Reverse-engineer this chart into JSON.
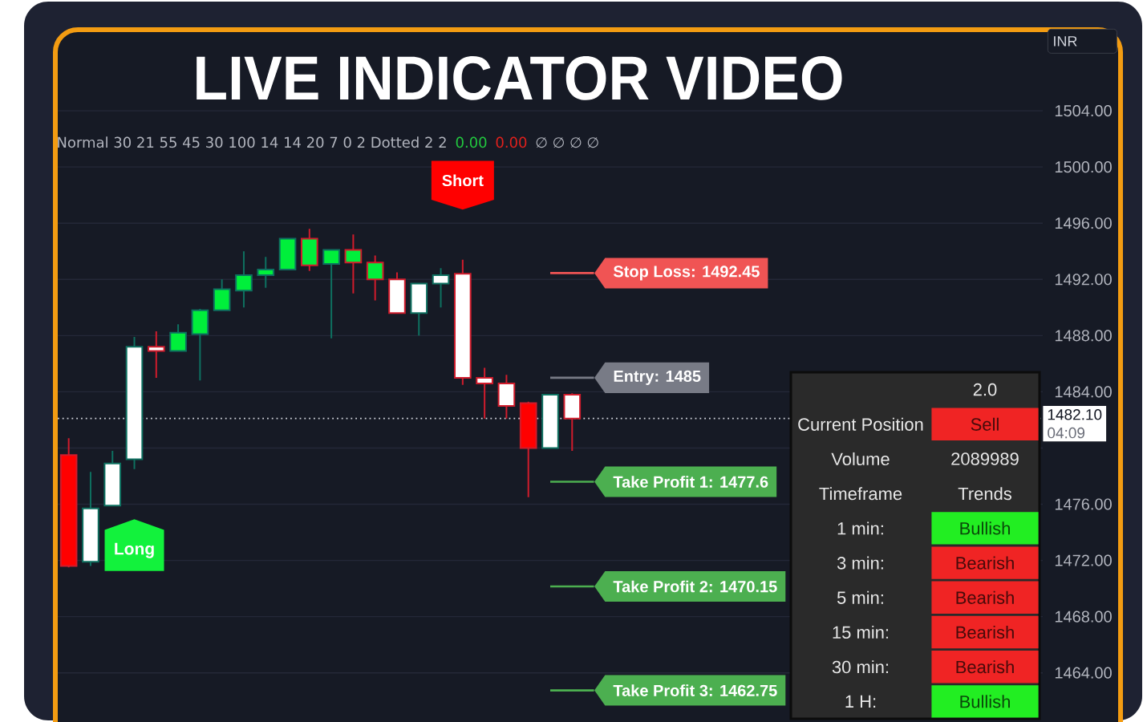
{
  "chart_data": [
    {
      "type": "candlestick",
      "title": "LIVE INDICATOR VIDEO",
      "categories": [
        null,
        null,
        null,
        null,
        null,
        null,
        null,
        null,
        null,
        null,
        null,
        null,
        null,
        null,
        null,
        null,
        null,
        null,
        null,
        null,
        null,
        null,
        null,
        null,
        null,
        null,
        null,
        null,
        null,
        null,
        null,
        null,
        null,
        null,
        null,
        null,
        null,
        null,
        null,
        null,
        null,
        null,
        null,
        null,
        null
      ],
      "ohlc": [
        [
          1479.5,
          1480.7,
          1471.5,
          1471.6
        ],
        [
          1471.9,
          1478.3,
          1471.6,
          1475.7
        ],
        [
          1475.9,
          1479.8,
          1475.9,
          1478.9
        ],
        [
          1479.2,
          1487.9,
          1478.5,
          1487.2
        ],
        [
          1487.2,
          1488.3,
          1485.0,
          1486.9
        ],
        [
          1486.9,
          1488.8,
          1486.9,
          1488.2
        ],
        [
          1488.1,
          1489.9,
          1484.8,
          1489.8
        ],
        [
          1489.8,
          1492.0,
          1489.8,
          1491.3
        ],
        [
          1491.2,
          1494.0,
          1490.0,
          1492.3
        ],
        [
          1492.3,
          1493.6,
          1491.4,
          1492.7
        ],
        [
          1492.7,
          1494.9,
          1492.7,
          1494.9
        ],
        [
          1494.9,
          1495.6,
          1492.6,
          1493.0
        ],
        [
          1493.1,
          1494.1,
          1487.8,
          1494.1
        ],
        [
          1494.1,
          1495.2,
          1491.0,
          1493.2
        ],
        [
          1493.2,
          1493.7,
          1490.5,
          1492.0
        ],
        [
          1492.0,
          1492.5,
          1489.6,
          1489.6
        ],
        [
          1489.6,
          1491.7,
          1488.0,
          1491.7
        ],
        [
          1491.7,
          1492.8,
          1490.0,
          1492.3
        ],
        [
          1492.4,
          1493.4,
          1484.5,
          1485.0
        ],
        [
          1485.0,
          1485.7,
          1482.1,
          1484.6
        ],
        [
          1484.6,
          1485.2,
          1482.1,
          1483.0
        ],
        [
          1483.2,
          1483.3,
          1476.5,
          1480.0
        ],
        [
          1480.0,
          1483.8,
          1480.0,
          1483.8
        ],
        [
          1483.8,
          1483.9,
          1479.8,
          1482.1
        ],
        null,
        null,
        null,
        null,
        null,
        null,
        null,
        null,
        null,
        null,
        null,
        null,
        null,
        null,
        null,
        null,
        null,
        null,
        null,
        null,
        null
      ],
      "colors": [
        "#ff0000",
        "#ffffff",
        "#ffffff",
        "#ffffff",
        "#ffffff",
        "#00ef3b",
        "#00ef3b",
        "#00ef3b",
        "#00ef3b",
        "#00ef3b",
        "#00ef3b",
        "#00ef3b",
        "#00ef3b",
        "#00ef3b",
        "#00ef3b",
        "#ffffff",
        "#ffffff",
        "#ffffff",
        "#ffffff",
        "#ffffff",
        "#ffffff",
        "#ff0000",
        "#ffffff",
        "#ffffff",
        null,
        null,
        null,
        null,
        null,
        null,
        null,
        null,
        null,
        null,
        null,
        null,
        null,
        null,
        null,
        null,
        null,
        null,
        null,
        null,
        null
      ],
      "ylim": [
        1460.5,
        1509.6
      ],
      "yticks": [
        {
          "value": 1464,
          "label": "1464.00"
        },
        {
          "value": 1468,
          "label": "1468.00"
        },
        {
          "value": 1472,
          "label": "1472.00"
        },
        {
          "value": 1476,
          "label": "1476.00"
        },
        {
          "value": 1480,
          "label": null
        },
        {
          "value": 1484,
          "label": "1484.00"
        },
        {
          "value": 1488,
          "label": "1488.00"
        },
        {
          "value": 1492,
          "label": "1492.00"
        },
        {
          "value": 1496,
          "label": "1496.00"
        },
        {
          "value": 1500,
          "label": "1500.00"
        },
        {
          "value": 1504,
          "label": "1504.00"
        }
      ],
      "tick_labels": "y",
      "grid": "y",
      "ref_lines": [
        {
          "axis": "y",
          "value": 1492.45,
          "label": "Stop Loss: 1492.45",
          "color": "#f05454",
          "line_style": "solid"
        },
        {
          "axis": "y",
          "value": 1485,
          "label": "Entry: 1485",
          "color": "#787b86",
          "line_style": "solid"
        },
        {
          "axis": "y",
          "value": 1477.6,
          "label": "Take Profit 1: 1477.6",
          "color": "#4caf50",
          "line_style": "solid"
        },
        {
          "axis": "y",
          "value": 1470.15,
          "label": "Take Profit 2: 1470.15",
          "color": "#4caf50",
          "line_style": "solid"
        },
        {
          "axis": "y",
          "value": 1462.75,
          "label": "Take Profit 3: 1462.75",
          "color": "#4caf50",
          "line_style": "solid"
        },
        {
          "axis": "y",
          "value": 1482.1,
          "label": "1482.10",
          "color": "#d1d4dc",
          "line_style": "dotted"
        }
      ],
      "annotations": [
        "Normal 30 21 55 45 30 100 14 14 20 7 0 2 Dotted 2 2",
        "0.00",
        "0.00",
        "∅ ∅ ∅ ∅",
        "INR",
        "04:09",
        "Short",
        "Long"
      ]
    },
    {
      "type": "other",
      "title": "2.0",
      "annotations": [
        "Current Position",
        "Volume",
        "Timeframe",
        "Trends",
        "1 min:",
        "3 min:",
        "5 min:",
        "15 min:",
        "30 min:",
        "1 H:"
      ],
      "value_labels": [
        "Sell",
        "2089989",
        "Bullish",
        "Bearish",
        "Bearish",
        "Bearish",
        "Bearish",
        "Bullish"
      ],
      "colors": [
        "#f02424",
        null,
        "#22ee22",
        "#f02424",
        "#f02424",
        "#f02424",
        "#f02424",
        "#22ee22"
      ]
    }
  ]
}
